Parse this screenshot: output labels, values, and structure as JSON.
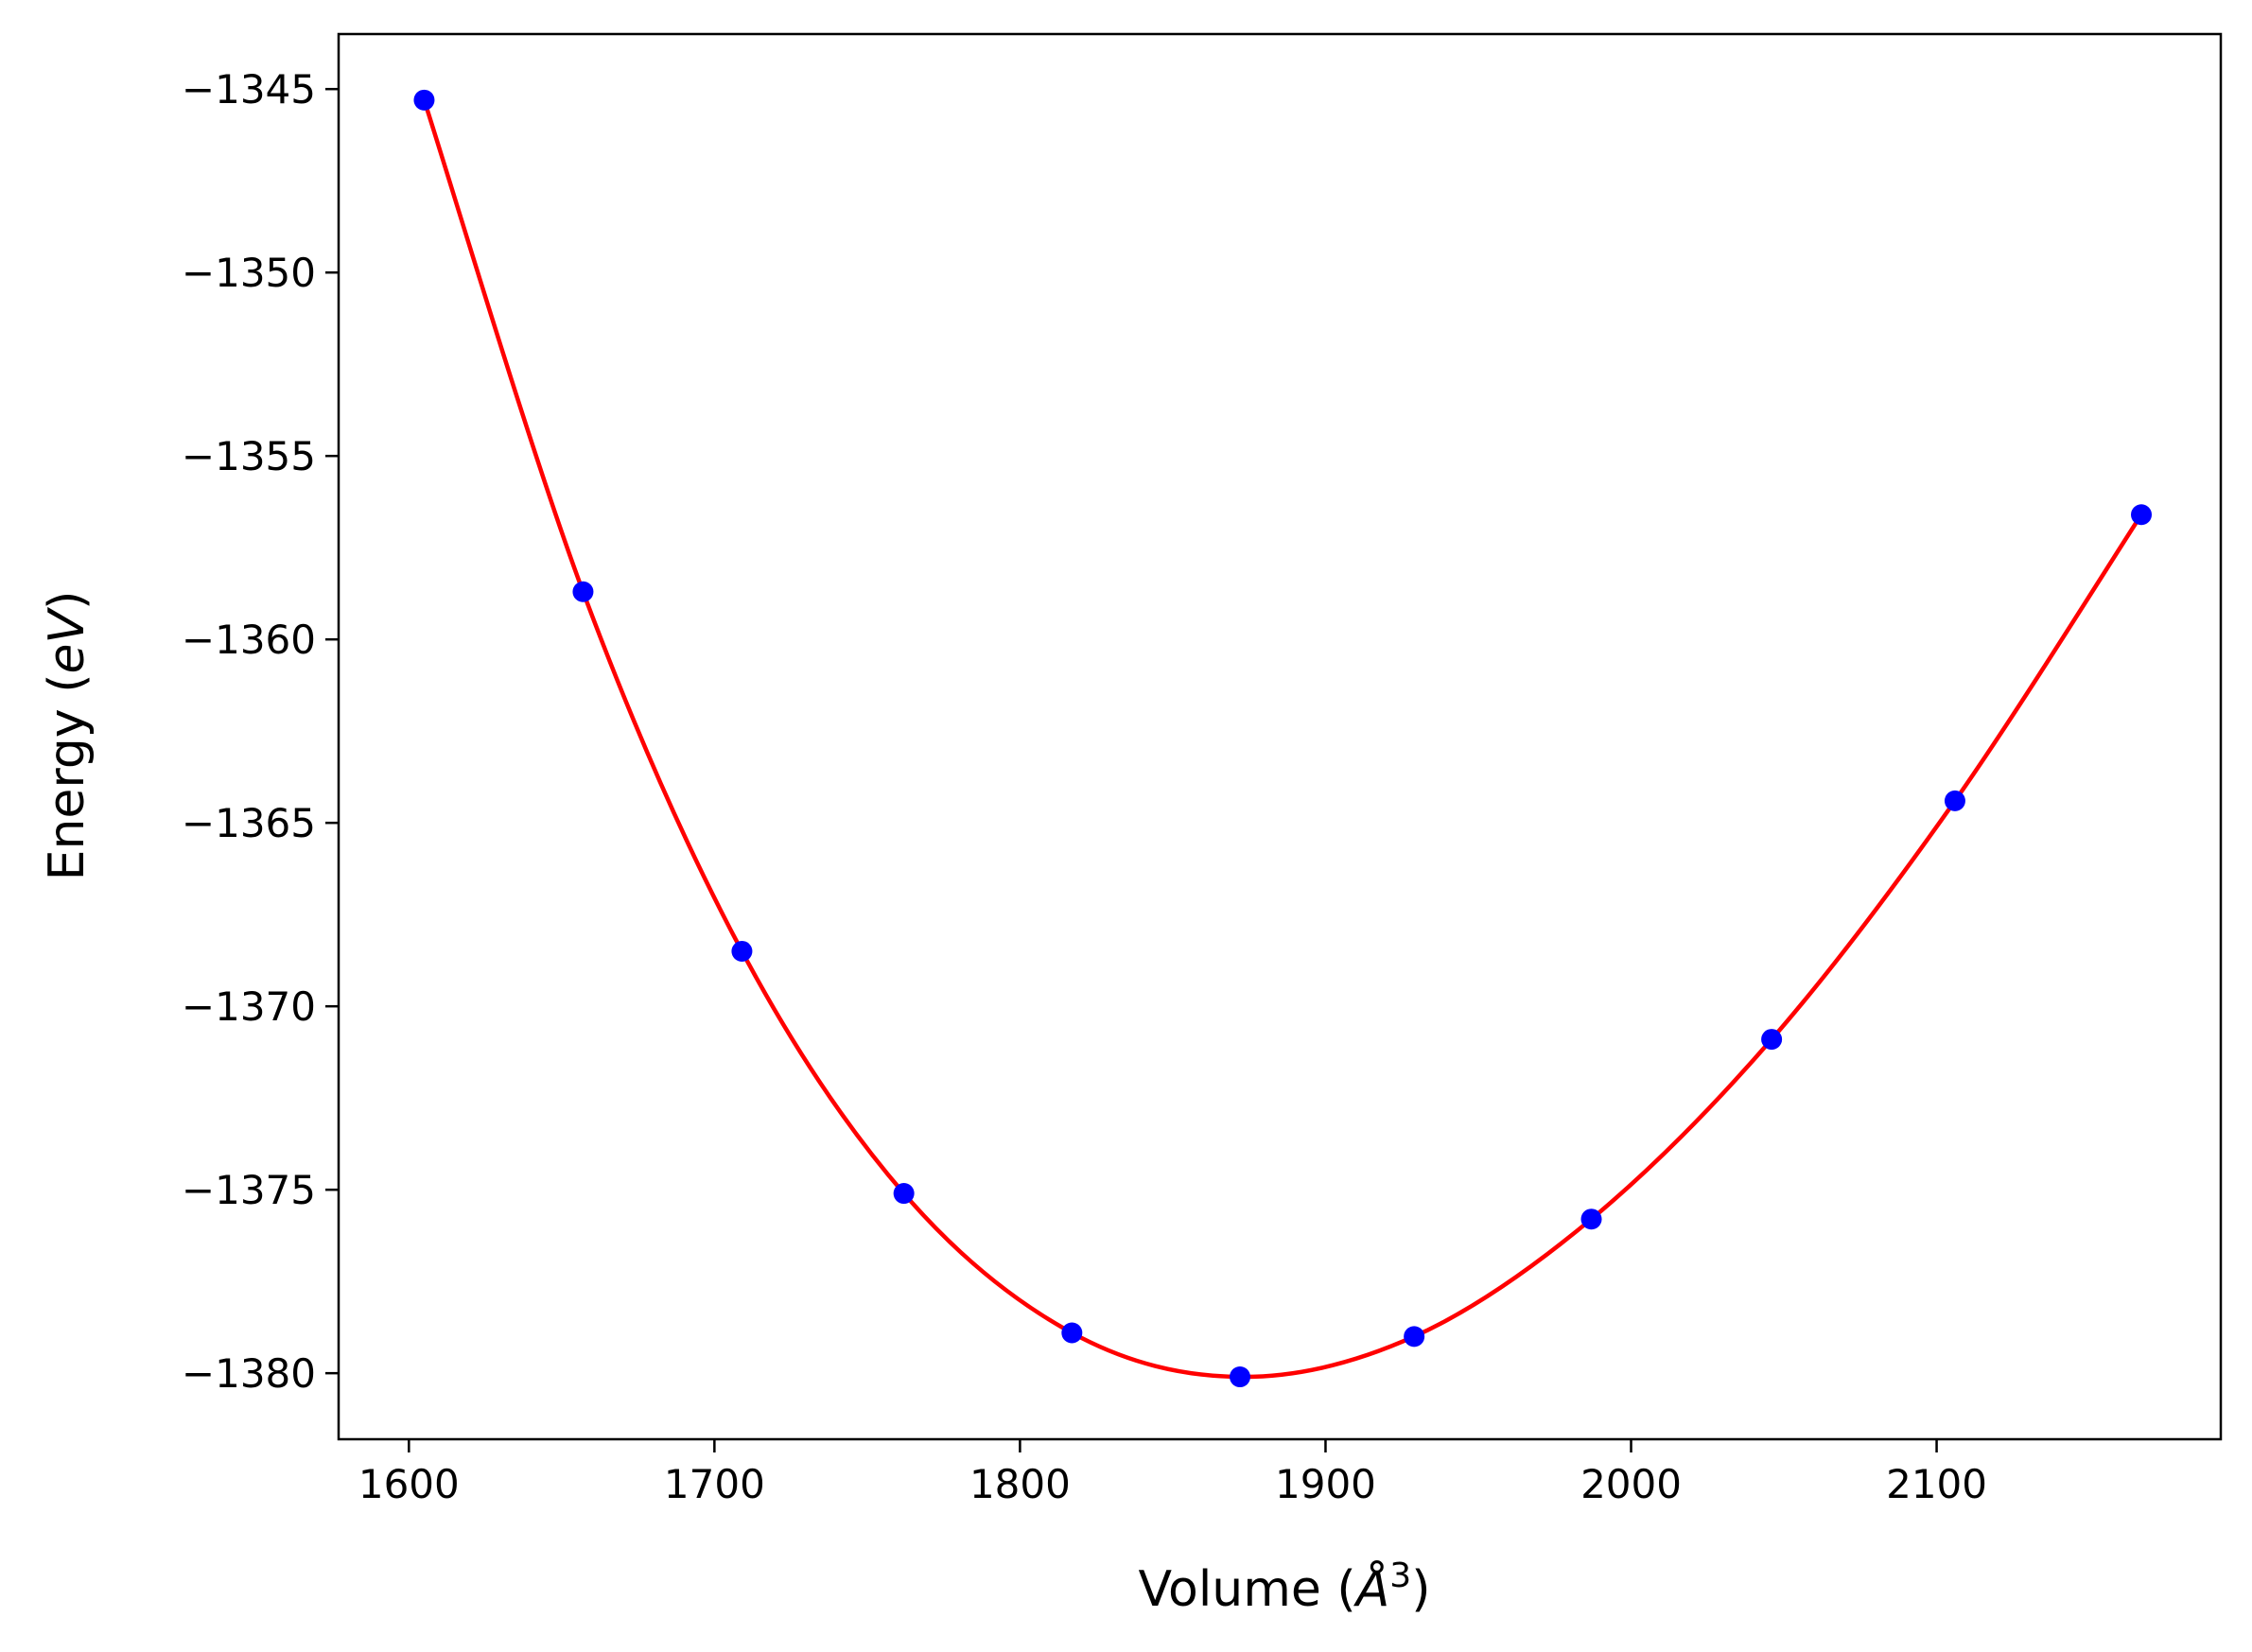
{
  "chart_data": {
    "type": "scatter",
    "xlabel": "Volume ($\\AA^3$)",
    "ylabel": "Energy ($eV$)",
    "xlim": [
      1577,
      2193
    ],
    "ylim": [
      -1381.8,
      -1343.5
    ],
    "xticks": [
      1600,
      1700,
      1800,
      1900,
      2000,
      2100
    ],
    "xtick_labels": [
      "1600",
      "1700",
      "1800",
      "1900",
      "2000",
      "2100"
    ],
    "yticks": [
      -1345,
      -1350,
      -1355,
      -1360,
      -1365,
      -1370,
      -1375,
      -1380
    ],
    "ytick_labels": [
      "−1345",
      "−1350",
      "−1355",
      "−1360",
      "−1365",
      "−1370",
      "−1375",
      "−1380"
    ],
    "grid": false,
    "legend": "none",
    "series": [
      {
        "kind": "points",
        "color": "#0000ff",
        "x": [
          1605,
          1657,
          1709,
          1762,
          1817,
          1872,
          1929,
          1987,
          2046,
          2106,
          2167
        ],
        "y": [
          -1345.3,
          -1358.7,
          -1368.5,
          -1375.1,
          -1378.9,
          -1380.1,
          -1379.0,
          -1375.8,
          -1370.9,
          -1364.4,
          -1356.6
        ]
      },
      {
        "kind": "fit-curve",
        "color": "#ff0000",
        "x": [
          1605,
          1657,
          1709,
          1762,
          1817,
          1872,
          1929,
          1987,
          2046,
          2106,
          2167
        ],
        "y": [
          -1345.3,
          -1358.7,
          -1368.5,
          -1375.1,
          -1378.9,
          -1380.1,
          -1379.0,
          -1375.8,
          -1370.9,
          -1364.4,
          -1356.6
        ]
      }
    ]
  }
}
